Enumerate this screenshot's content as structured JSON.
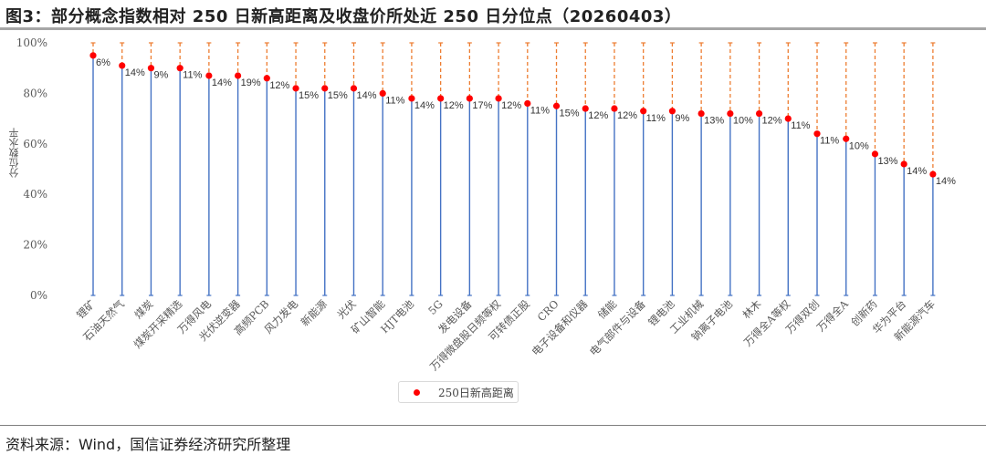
{
  "figure": {
    "title": "图3：部分概念指数相对 250 日新高距离及收盘价所处近 250 日分位点（20260403）",
    "source": "资料来源：Wind，国信证券经济研究所整理"
  },
  "colors": {
    "stem": "#4472c4",
    "dot": "#ff0000",
    "dashed": "#ed7d31",
    "axis_text": "#595959"
  },
  "chart_data": {
    "type": "scatter",
    "title": "部分概念指数相对 250 日新高距离及收盘价所处近 250 日分位点（20260403）",
    "xlabel": "",
    "ylabel": "分位数水平",
    "ylim": [
      0,
      1
    ],
    "yticks": [
      "0%",
      "20%",
      "40%",
      "60%",
      "80%",
      "100%"
    ],
    "grid": false,
    "legend": [
      "250日新高距离"
    ],
    "legend_position": "bottom",
    "categories": [
      "锂矿",
      "石油天然气",
      "煤炭",
      "煤炭开采精选",
      "万得风电",
      "光伏逆变器",
      "高频PCB",
      "风力发电",
      "新能源",
      "光伏",
      "矿山智能",
      "HJT电池",
      "5G",
      "发电设备",
      "万得微盘股日频等权",
      "可转债正股",
      "CRO",
      "电子设备和仪器",
      "储能",
      "电气部件与设备",
      "锂电池",
      "工业机械",
      "钠离子电池",
      "林木",
      "万得全A等权",
      "万得双创",
      "万得全A",
      "创新药",
      "华为平台",
      "新能源汽车"
    ],
    "series": [
      {
        "name": "分位点",
        "values": [
          0.95,
          0.91,
          0.9,
          0.9,
          0.87,
          0.87,
          0.86,
          0.82,
          0.82,
          0.82,
          0.8,
          0.78,
          0.78,
          0.78,
          0.78,
          0.76,
          0.75,
          0.74,
          0.74,
          0.73,
          0.73,
          0.72,
          0.72,
          0.72,
          0.7,
          0.64,
          0.62,
          0.56,
          0.52,
          0.48
        ]
      },
      {
        "name": "250日新高距离",
        "values": [
          0.06,
          0.14,
          0.09,
          0.11,
          0.14,
          0.19,
          0.12,
          0.15,
          0.15,
          0.14,
          0.11,
          0.14,
          0.12,
          0.17,
          0.12,
          0.11,
          0.15,
          0.12,
          0.12,
          0.11,
          0.09,
          0.13,
          0.1,
          0.12,
          0.11,
          0.11,
          0.1,
          0.13,
          0.14,
          0.14
        ],
        "labels": [
          "6%",
          "14%",
          "9%",
          "11%",
          "14%",
          "19%",
          "12%",
          "15%",
          "15%",
          "14%",
          "11%",
          "14%",
          "12%",
          "17%",
          "12%",
          "11%",
          "15%",
          "12%",
          "12%",
          "11%",
          "9%",
          "13%",
          "10%",
          "12%",
          "11%",
          "11%",
          "10%",
          "13%",
          "14%",
          "14%"
        ]
      }
    ]
  }
}
